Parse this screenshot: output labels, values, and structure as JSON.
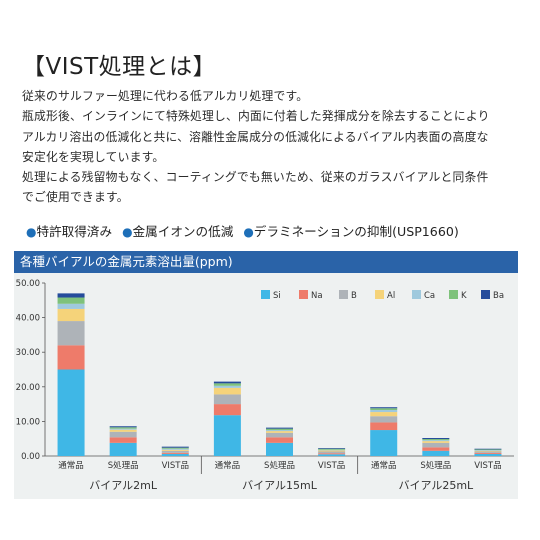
{
  "title": "【VIST処理とは】",
  "paragraphs": [
    "従来のサルファー処理に代わる低アルカリ処理です。",
    "瓶成形後、インラインにて特殊処理し、内面に付着した発揮成分を除去することにより",
    "アルカリ溶出の低減化と共に、溶離性金属成分の低減化によるバイアル内表面の高度な",
    "安定化を実現しています。",
    "処理による残留物もなく、コーティングでも無いため、従来のガラスバイアルと同条件",
    "でご使用できます。"
  ],
  "features": [
    "特許取得済み",
    "金属イオンの低減",
    "デラミネーションの抑制(USP1660)"
  ],
  "chart_header": "各種バイアルの金属元素溶出量(ppm)",
  "chart_data": {
    "type": "bar",
    "stacked": true,
    "title": "各種バイアルの金属元素溶出量(ppm)",
    "ylim": [
      0,
      50
    ],
    "yticks": [
      "0.00",
      "10.00",
      "20.00",
      "30.00",
      "40.00",
      "50.00"
    ],
    "groups": [
      "バイアル2mL",
      "バイアル15mL",
      "バイアル25mL"
    ],
    "categories": [
      "通常品",
      "S処理品",
      "VIST品",
      "通常品",
      "S処理品",
      "VIST品",
      "通常品",
      "S処理品",
      "VIST品"
    ],
    "series": [
      {
        "name": "Si",
        "color": "#3fb7e6",
        "values": [
          25.0,
          3.8,
          0.6,
          11.8,
          3.8,
          0.5,
          7.5,
          1.5,
          0.6
        ]
      },
      {
        "name": "Na",
        "color": "#ee7b6a",
        "values": [
          7.0,
          1.6,
          0.3,
          3.2,
          1.6,
          0.3,
          2.2,
          1.0,
          0.3
        ]
      },
      {
        "name": "B",
        "color": "#aeb3b8",
        "values": [
          7.0,
          1.6,
          0.6,
          2.8,
          1.3,
          0.5,
          1.8,
          1.3,
          0.4
        ]
      },
      {
        "name": "Al",
        "color": "#f5d37a",
        "values": [
          3.5,
          0.6,
          0.3,
          1.9,
          0.5,
          0.3,
          1.2,
          0.5,
          0.2
        ]
      },
      {
        "name": "Ca",
        "color": "#9fc9dd",
        "values": [
          1.5,
          0.3,
          0.3,
          0.6,
          0.3,
          0.2,
          0.6,
          0.3,
          0.2
        ]
      },
      {
        "name": "K",
        "color": "#7ec27b",
        "values": [
          1.8,
          0.4,
          0.3,
          0.7,
          0.4,
          0.3,
          0.5,
          0.3,
          0.2
        ]
      },
      {
        "name": "Ba",
        "color": "#254c9b",
        "values": [
          1.2,
          0.3,
          0.3,
          0.5,
          0.3,
          0.2,
          0.3,
          0.3,
          0.2
        ]
      }
    ],
    "legend_position": "top-right",
    "grid": false
  }
}
